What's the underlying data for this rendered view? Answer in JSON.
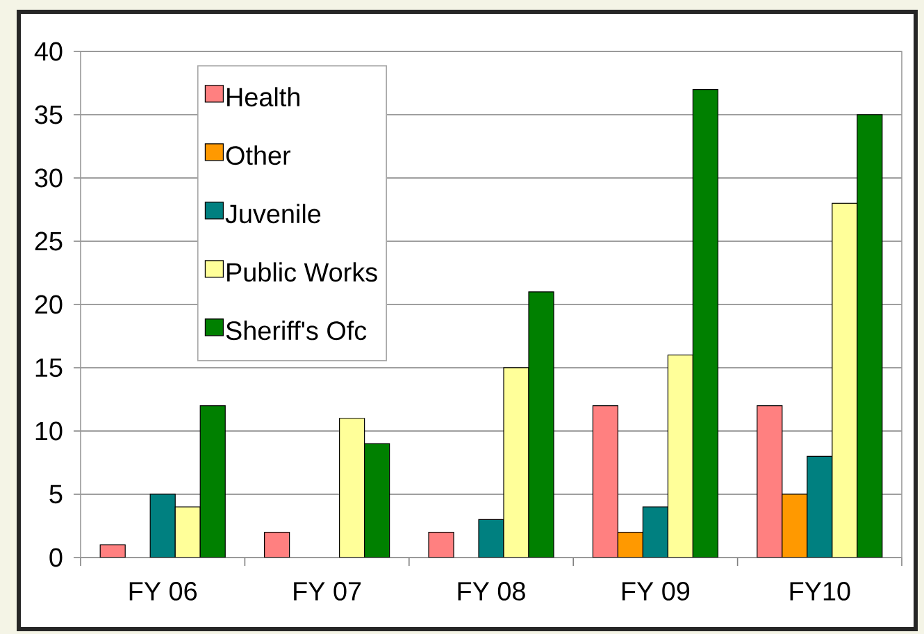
{
  "chart_data": {
    "type": "bar",
    "categories": [
      "FY 06",
      "FY 07",
      "FY 08",
      "FY 09",
      "FY10"
    ],
    "series": [
      {
        "name": "Health",
        "color": "#ff8080",
        "values": [
          1,
          2,
          2,
          12,
          12
        ]
      },
      {
        "name": "Other",
        "color": "#ff9900",
        "values": [
          null,
          null,
          null,
          2,
          5
        ]
      },
      {
        "name": "Juvenile",
        "color": "#008080",
        "values": [
          5,
          null,
          3,
          4,
          8
        ]
      },
      {
        "name": "Public Works",
        "color": "#ffff99",
        "values": [
          4,
          11,
          15,
          16,
          28
        ]
      },
      {
        "name": "Sheriff's Ofc",
        "color": "#008000",
        "values": [
          12,
          9,
          21,
          37,
          35
        ]
      }
    ],
    "ylim": [
      0,
      40
    ],
    "yticks": [
      0,
      5,
      10,
      15,
      20,
      25,
      30,
      35,
      40
    ],
    "grid": "y",
    "legend": "top left"
  }
}
